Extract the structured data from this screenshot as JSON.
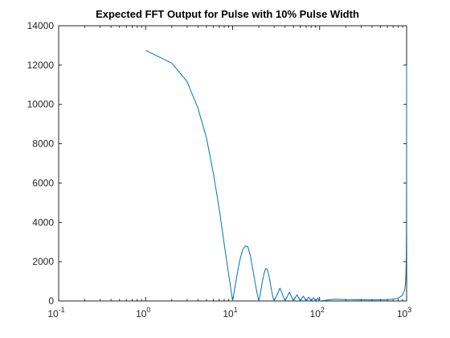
{
  "chart_data": {
    "type": "line",
    "title": "Expected FFT Output for Pulse with 10% Pulse Width",
    "xlabel": "",
    "ylabel": "",
    "xscale": "log",
    "xlim": [
      0.1,
      1000
    ],
    "ylim": [
      0,
      14000
    ],
    "grid": false,
    "colors": {
      "series": "#0072bd",
      "axis": "#262626"
    },
    "x_ticks": [
      {
        "base": "10",
        "exp": "-1",
        "value": 0.1
      },
      {
        "base": "10",
        "exp": "0",
        "value": 1
      },
      {
        "base": "10",
        "exp": "1",
        "value": 10
      },
      {
        "base": "10",
        "exp": "2",
        "value": 100
      },
      {
        "base": "10",
        "exp": "3",
        "value": 1000
      }
    ],
    "y_ticks": [
      "0",
      "2000",
      "4000",
      "6000",
      "8000",
      "10000",
      "12000",
      "14000"
    ],
    "series": [
      {
        "x": [
          1,
          2,
          3,
          4,
          5,
          6,
          7,
          8,
          9,
          10,
          11,
          12,
          13,
          14,
          15,
          16,
          17,
          18,
          19,
          20,
          21,
          22,
          23,
          24,
          25,
          26,
          27,
          28,
          29,
          30,
          35,
          40,
          45,
          50,
          55,
          60,
          65,
          70,
          75,
          80,
          85,
          90,
          95,
          100,
          150,
          200,
          300,
          400,
          500,
          600,
          700,
          800,
          900,
          950,
          970,
          980,
          990,
          995,
          998,
          999,
          1000
        ],
        "y": [
          12750,
          12100,
          11150,
          9800,
          8300,
          6500,
          4700,
          2900,
          1350,
          0,
          1100,
          2000,
          2600,
          2800,
          2750,
          2300,
          1650,
          1000,
          450,
          0,
          450,
          1000,
          1400,
          1650,
          1600,
          1350,
          950,
          550,
          200,
          0,
          650,
          0,
          450,
          0,
          320,
          0,
          250,
          0,
          200,
          0,
          170,
          0,
          140,
          0,
          90,
          70,
          60,
          55,
          60,
          70,
          90,
          140,
          300,
          550,
          850,
          1200,
          2100,
          3500,
          6000,
          9000,
          12000
        ]
      }
    ]
  }
}
